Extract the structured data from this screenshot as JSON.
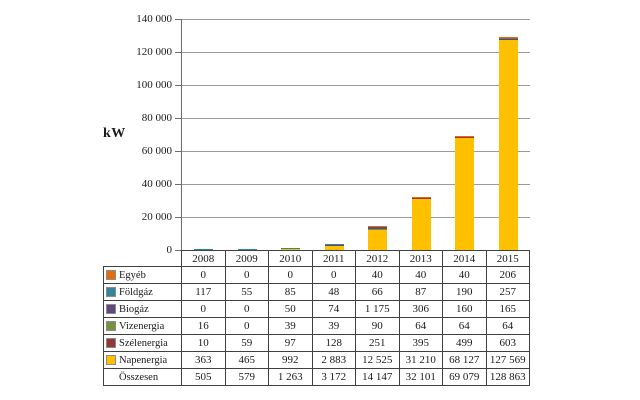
{
  "chart": {
    "ylabel": "kW",
    "y_axis_ticks": [
      {
        "label": "140 000",
        "value": 140000
      },
      {
        "label": "120 000",
        "value": 120000
      },
      {
        "label": "100 000",
        "value": 100000
      },
      {
        "label": "80 000",
        "value": 80000
      },
      {
        "label": "60 000",
        "value": 60000
      },
      {
        "label": "40 000",
        "value": 40000
      },
      {
        "label": "20 000",
        "value": 20000
      },
      {
        "label": "0",
        "value": 0
      }
    ]
  },
  "chart_data": {
    "type": "bar",
    "stacked": true,
    "title": "",
    "xlabel": "",
    "ylabel": "kW",
    "ylim": [
      0,
      140000
    ],
    "grid": true,
    "legend_position": "data-table-left",
    "categories": [
      "2008",
      "2009",
      "2010",
      "2011",
      "2012",
      "2013",
      "2014",
      "2015"
    ],
    "series": [
      {
        "name": "Egyéb",
        "color": "#E46C0A",
        "values": [
          0,
          0,
          0,
          0,
          40,
          40,
          40,
          206
        ]
      },
      {
        "name": "Földgáz",
        "color": "#31859C",
        "values": [
          117,
          55,
          85,
          48,
          66,
          87,
          190,
          257
        ]
      },
      {
        "name": "Biogáz",
        "color": "#604A7B",
        "values": [
          0,
          0,
          50,
          74,
          1175,
          306,
          160,
          165
        ]
      },
      {
        "name": "Vizenergia",
        "color": "#76923C",
        "values": [
          16,
          0,
          39,
          39,
          90,
          64,
          64,
          64
        ]
      },
      {
        "name": "Szélenergia",
        "color": "#953735",
        "values": [
          10,
          59,
          97,
          128,
          251,
          395,
          499,
          603
        ]
      },
      {
        "name": "Napenergia",
        "color": "#FFC000",
        "values": [
          363,
          465,
          992,
          2883,
          12525,
          31210,
          68127,
          127569
        ]
      }
    ],
    "stack_bottom_to_top": [
      "Napenergia",
      "Szélenergia",
      "Vizenergia",
      "Biogáz",
      "Földgáz",
      "Egyéb"
    ],
    "totals": {
      "name": "Összesen",
      "values": [
        505,
        579,
        1263,
        3172,
        14147,
        32101,
        69079,
        128863
      ]
    }
  },
  "table": {
    "header": [
      "2008",
      "2009",
      "2010",
      "2011",
      "2012",
      "2013",
      "2014",
      "2015"
    ],
    "rows": [
      {
        "label": "Egyéb",
        "swatch": "#E46C0A",
        "cells": [
          "0",
          "0",
          "0",
          "0",
          "40",
          "40",
          "40",
          "206"
        ]
      },
      {
        "label": "Földgáz",
        "swatch": "#31859C",
        "cells": [
          "117",
          "55",
          "85",
          "48",
          "66",
          "87",
          "190",
          "257"
        ]
      },
      {
        "label": "Biogáz",
        "swatch": "#604A7B",
        "cells": [
          "0",
          "0",
          "50",
          "74",
          "1 175",
          "306",
          "160",
          "165"
        ]
      },
      {
        "label": "Vizenergia",
        "swatch": "#76923C",
        "cells": [
          "16",
          "0",
          "39",
          "39",
          "90",
          "64",
          "64",
          "64"
        ]
      },
      {
        "label": "Szélenergia",
        "swatch": "#953735",
        "cells": [
          "10",
          "59",
          "97",
          "128",
          "251",
          "395",
          "499",
          "603"
        ]
      },
      {
        "label": "Napenergia",
        "swatch": "#FFC000",
        "cells": [
          "363",
          "465",
          "992",
          "2 883",
          "12 525",
          "31 210",
          "68 127",
          "127 569"
        ]
      },
      {
        "label": "Összesen",
        "swatch": null,
        "cells": [
          "505",
          "579",
          "1 263",
          "3 172",
          "14 147",
          "32 101",
          "69 079",
          "128 863"
        ]
      }
    ]
  }
}
